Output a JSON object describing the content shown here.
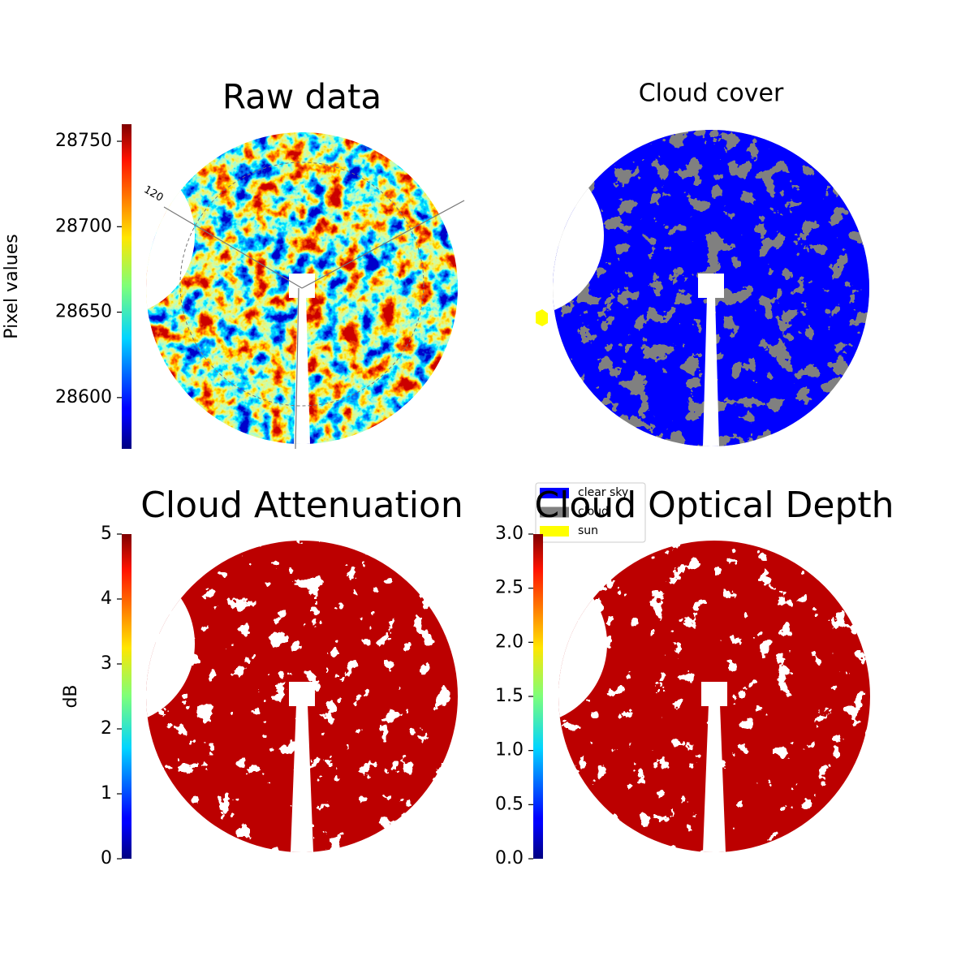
{
  "chart_data": [
    {
      "type": "image",
      "title": "Raw data",
      "colormap": "jet",
      "colorbar": {
        "label": "Pixel values",
        "ylim": [
          28570,
          28760
        ],
        "yticks": [
          28600,
          28650,
          28700,
          28750
        ]
      },
      "annotations": [
        "120"
      ]
    },
    {
      "type": "image",
      "title": "Cloud cover",
      "legend": "lower left",
      "series": [
        {
          "name": "clear sky",
          "color": "#0000ff"
        },
        {
          "name": "cloud",
          "color": "#808080"
        },
        {
          "name": "sun",
          "color": "#ffff00"
        }
      ]
    },
    {
      "type": "image",
      "title": "Cloud Attenuation",
      "colormap": "jet",
      "colorbar": {
        "label": "dB",
        "ylim": [
          0,
          5
        ],
        "yticks": [
          0,
          1,
          2,
          3,
          4,
          5
        ]
      }
    },
    {
      "type": "image",
      "title": "Cloud Optical Depth",
      "colormap": "jet",
      "colorbar": {
        "ylim": [
          0,
          3
        ],
        "yticks": [
          {
            "value": 0,
            "label": "0.0"
          },
          {
            "value": 0.5,
            "label": "0.5"
          },
          {
            "value": 1,
            "label": "1.0"
          },
          {
            "value": 1.5,
            "label": "1.5"
          },
          {
            "value": 2,
            "label": "2.0"
          },
          {
            "value": 2.5,
            "label": "2.5"
          },
          {
            "value": 3,
            "label": "3.0"
          }
        ]
      }
    }
  ]
}
